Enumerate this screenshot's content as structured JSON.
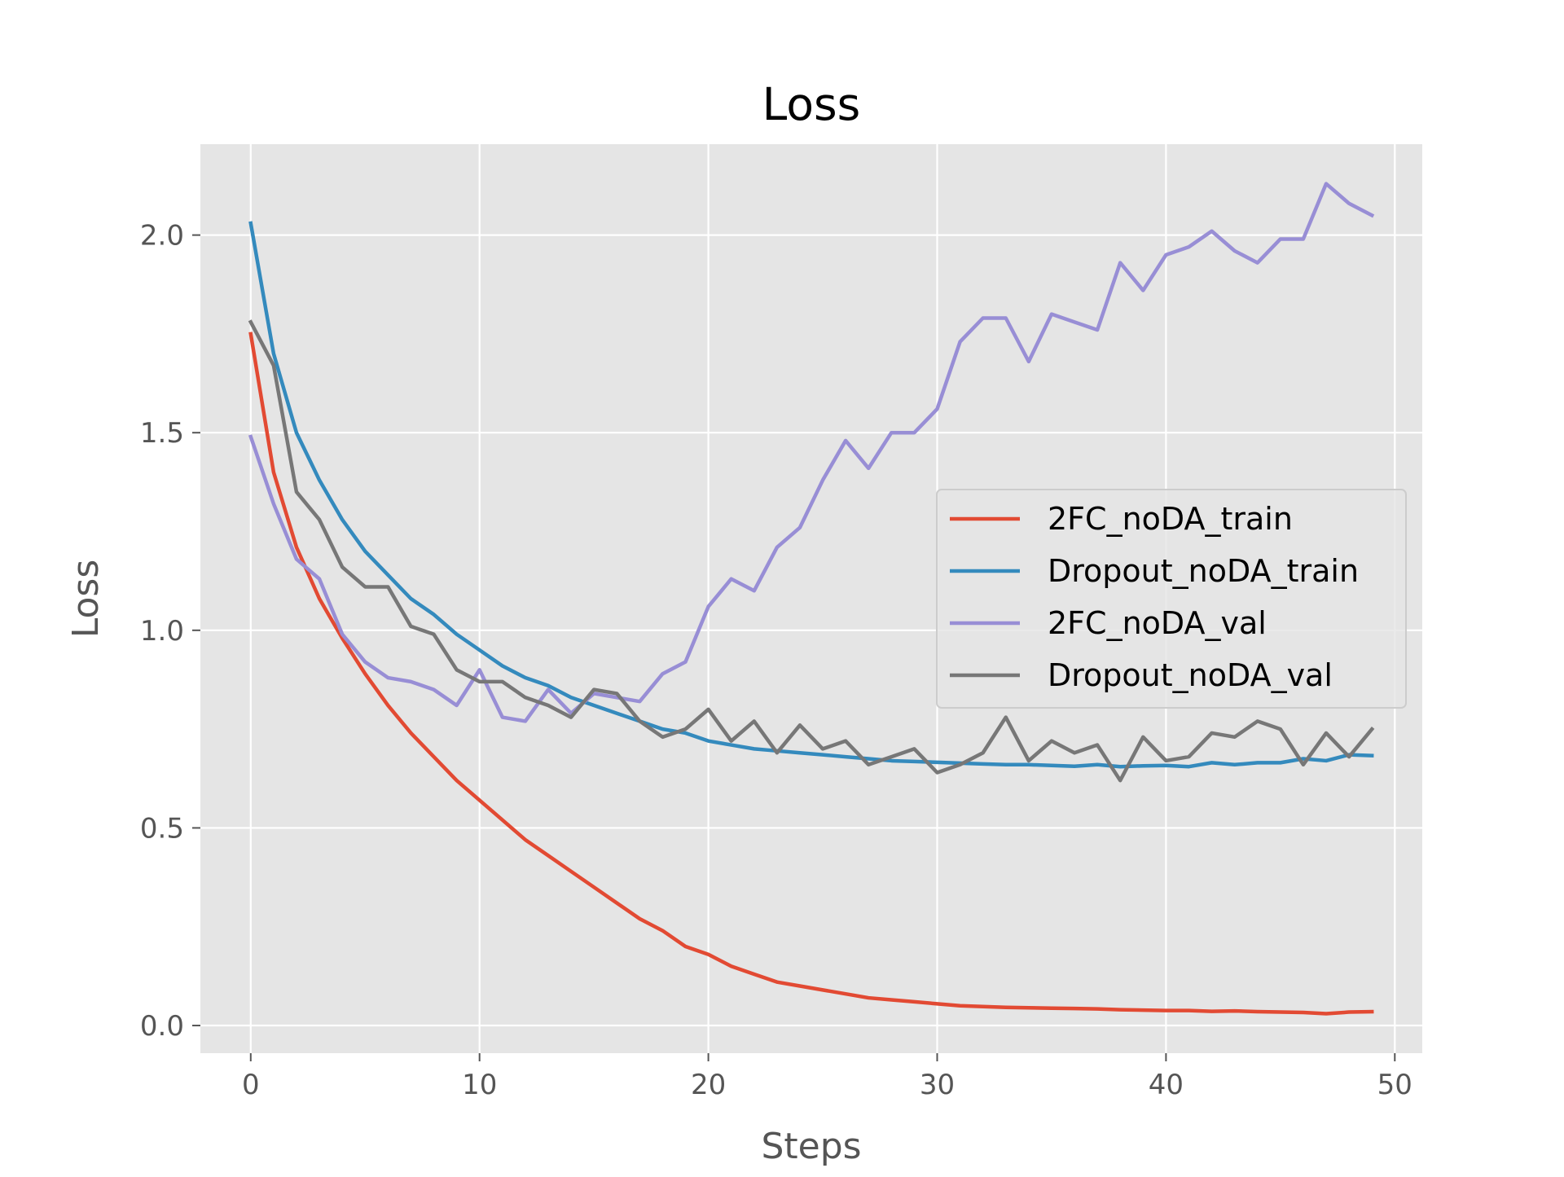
{
  "chart_data": {
    "type": "line",
    "title": "Loss",
    "xlabel": "Steps",
    "ylabel": "Loss",
    "xlim": [
      -2.2,
      51.2
    ],
    "ylim": [
      -0.07,
      2.23
    ],
    "xticks": [
      0,
      10,
      20,
      30,
      40,
      50
    ],
    "yticks": [
      0.0,
      0.5,
      1.0,
      1.5,
      2.0
    ],
    "xtick_labels": [
      "0",
      "10",
      "20",
      "30",
      "40",
      "50"
    ],
    "ytick_labels": [
      "0.0",
      "0.5",
      "1.0",
      "1.5",
      "2.0"
    ],
    "grid": true,
    "legend_position": "center-right",
    "background": "#e5e5e5",
    "series": [
      {
        "name": "2FC_noDA_train",
        "color": "#e24a33",
        "values": [
          1.75,
          1.4,
          1.21,
          1.08,
          0.98,
          0.89,
          0.81,
          0.74,
          0.68,
          0.62,
          0.57,
          0.52,
          0.47,
          0.43,
          0.39,
          0.35,
          0.31,
          0.27,
          0.24,
          0.2,
          0.18,
          0.15,
          0.13,
          0.11,
          0.1,
          0.09,
          0.08,
          0.07,
          0.065,
          0.06,
          0.055,
          0.05,
          0.048,
          0.046,
          0.045,
          0.044,
          0.043,
          0.042,
          0.04,
          0.039,
          0.038,
          0.038,
          0.036,
          0.037,
          0.035,
          0.034,
          0.033,
          0.03,
          0.034,
          0.035
        ]
      },
      {
        "name": "Dropout_noDA_train",
        "color": "#348abd",
        "values": [
          2.03,
          1.7,
          1.5,
          1.38,
          1.28,
          1.2,
          1.14,
          1.08,
          1.04,
          0.99,
          0.95,
          0.91,
          0.88,
          0.86,
          0.83,
          0.81,
          0.79,
          0.77,
          0.75,
          0.74,
          0.72,
          0.71,
          0.7,
          0.695,
          0.69,
          0.685,
          0.68,
          0.675,
          0.67,
          0.668,
          0.666,
          0.664,
          0.662,
          0.66,
          0.66,
          0.658,
          0.656,
          0.66,
          0.655,
          0.657,
          0.658,
          0.655,
          0.665,
          0.66,
          0.665,
          0.665,
          0.675,
          0.67,
          0.685,
          0.683
        ]
      },
      {
        "name": "2FC_noDA_val",
        "color": "#988ed5",
        "values": [
          1.49,
          1.32,
          1.18,
          1.13,
          0.99,
          0.92,
          0.88,
          0.87,
          0.85,
          0.81,
          0.9,
          0.78,
          0.77,
          0.85,
          0.79,
          0.84,
          0.83,
          0.82,
          0.89,
          0.92,
          1.06,
          1.13,
          1.1,
          1.21,
          1.26,
          1.38,
          1.48,
          1.41,
          1.5,
          1.5,
          1.56,
          1.73,
          1.79,
          1.79,
          1.68,
          1.8,
          1.78,
          1.76,
          1.93,
          1.86,
          1.95,
          1.97,
          2.01,
          1.96,
          1.93,
          1.99,
          1.99,
          2.13,
          2.08,
          2.05
        ]
      },
      {
        "name": "Dropout_noDA_val",
        "color": "#777777",
        "values": [
          1.78,
          1.67,
          1.35,
          1.28,
          1.16,
          1.11,
          1.11,
          1.01,
          0.99,
          0.9,
          0.87,
          0.87,
          0.83,
          0.81,
          0.78,
          0.85,
          0.84,
          0.77,
          0.73,
          0.75,
          0.8,
          0.72,
          0.77,
          0.69,
          0.76,
          0.7,
          0.72,
          0.66,
          0.68,
          0.7,
          0.64,
          0.66,
          0.69,
          0.78,
          0.67,
          0.72,
          0.69,
          0.71,
          0.62,
          0.73,
          0.67,
          0.68,
          0.74,
          0.73,
          0.77,
          0.75,
          0.66,
          0.74,
          0.68,
          0.75
        ]
      }
    ]
  }
}
